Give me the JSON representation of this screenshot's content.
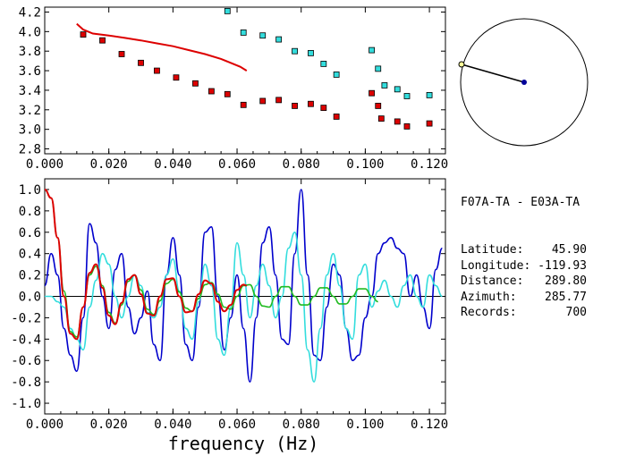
{
  "info": {
    "title": "F07A-TA - E03A-TA",
    "rows": [
      {
        "label": "Latitude:",
        "value": "45.90"
      },
      {
        "label": "Longitude:",
        "value": "-119.93"
      },
      {
        "label": "Distance:",
        "value": "289.80"
      },
      {
        "label": "Azimuth:",
        "value": "285.77"
      },
      {
        "label": "Records:",
        "value": "700"
      }
    ]
  },
  "colors": {
    "red": "#dd0000",
    "cyan": "#33dddd",
    "blue": "#0000cc",
    "green": "#22bb22",
    "zero_line": "#000000"
  },
  "chart_data": [
    {
      "type": "scatter",
      "title": "",
      "xlabel": "",
      "ylabel": "",
      "xlim": [
        0.0,
        0.125
      ],
      "ylim": [
        2.75,
        4.25
      ],
      "x_ticks": [
        "0.000",
        "0.020",
        "0.040",
        "0.060",
        "0.080",
        "0.100",
        "0.120"
      ],
      "y_ticks": [
        "2.8",
        "3.0",
        "3.2",
        "3.4",
        "3.6",
        "3.8",
        "4.0",
        "4.2"
      ],
      "grid": false,
      "series": [
        {
          "kind": "points",
          "color": "red",
          "x": [
            0.012,
            0.018,
            0.024,
            0.03,
            0.035,
            0.041,
            0.047,
            0.052,
            0.057,
            0.062,
            0.068,
            0.073,
            0.078,
            0.083,
            0.087,
            0.091,
            0.102,
            0.104,
            0.105,
            0.11,
            0.113,
            0.12
          ],
          "y": [
            3.97,
            3.91,
            3.77,
            3.68,
            3.6,
            3.53,
            3.47,
            3.39,
            3.36,
            3.25,
            3.29,
            3.3,
            3.24,
            3.26,
            3.22,
            3.13,
            3.37,
            3.24,
            3.11,
            3.08,
            3.03,
            3.06
          ]
        },
        {
          "kind": "points",
          "color": "cyan",
          "x": [
            0.057,
            0.062,
            0.068,
            0.073,
            0.078,
            0.083,
            0.087,
            0.091,
            0.102,
            0.104,
            0.106,
            0.11,
            0.113,
            0.12
          ],
          "y": [
            4.21,
            3.99,
            3.96,
            3.92,
            3.8,
            3.78,
            3.67,
            3.56,
            3.81,
            3.62,
            3.45,
            3.41,
            3.34,
            3.35
          ]
        },
        {
          "kind": "line",
          "color": "red",
          "x": [
            0.01,
            0.012,
            0.015,
            0.02,
            0.025,
            0.03,
            0.035,
            0.04,
            0.045,
            0.05,
            0.055,
            0.058,
            0.061,
            0.063
          ],
          "y": [
            4.08,
            4.02,
            3.98,
            3.96,
            3.935,
            3.91,
            3.88,
            3.85,
            3.81,
            3.77,
            3.72,
            3.68,
            3.64,
            3.6
          ]
        }
      ]
    },
    {
      "type": "line",
      "title": "",
      "xlabel": "frequency (Hz)",
      "ylabel": "",
      "xlim": [
        0.0,
        0.125
      ],
      "ylim": [
        -1.1,
        1.1
      ],
      "x_ticks": [
        "0.000",
        "0.020",
        "0.040",
        "0.060",
        "0.080",
        "0.100",
        "0.120"
      ],
      "y_ticks": [
        "1.0",
        "0.8",
        "0.6",
        "0.4",
        "0.2",
        "0.0",
        "-0.2",
        "-0.4",
        "-0.6",
        "-0.8",
        "-1.0"
      ],
      "grid": false,
      "series": [
        {
          "color": "blue",
          "x": [
            0.0,
            0.002,
            0.004,
            0.006,
            0.008,
            0.01,
            0.012,
            0.014,
            0.016,
            0.018,
            0.02,
            0.022,
            0.024,
            0.026,
            0.028,
            0.03,
            0.032,
            0.034,
            0.036,
            0.038,
            0.04,
            0.042,
            0.044,
            0.046,
            0.048,
            0.05,
            0.052,
            0.054,
            0.056,
            0.058,
            0.06,
            0.062,
            0.064,
            0.066,
            0.068,
            0.07,
            0.072,
            0.074,
            0.076,
            0.078,
            0.08,
            0.082,
            0.084,
            0.086,
            0.088,
            0.09,
            0.092,
            0.094,
            0.096,
            0.098,
            0.1,
            0.102,
            0.104,
            0.106,
            0.108,
            0.11,
            0.112,
            0.114,
            0.116,
            0.118,
            0.12,
            0.122,
            0.124
          ],
          "y": [
            0.1,
            0.4,
            0.2,
            -0.3,
            -0.55,
            -0.7,
            -0.2,
            0.68,
            0.5,
            0.0,
            -0.3,
            0.25,
            0.4,
            -0.1,
            -0.35,
            -0.2,
            0.05,
            -0.45,
            -0.6,
            0.2,
            0.55,
            0.2,
            -0.45,
            -0.6,
            -0.1,
            0.6,
            0.65,
            0.0,
            -0.5,
            -0.2,
            0.2,
            -0.3,
            -0.8,
            -0.2,
            0.5,
            0.65,
            0.2,
            -0.4,
            -0.45,
            0.4,
            1.0,
            0.2,
            -0.55,
            -0.6,
            -0.1,
            0.3,
            0.2,
            -0.3,
            -0.6,
            -0.55,
            -0.2,
            0.0,
            0.4,
            0.5,
            0.55,
            0.45,
            0.4,
            0.0,
            0.2,
            -0.1,
            -0.3,
            0.25,
            0.45
          ]
        },
        {
          "color": "cyan",
          "x": [
            0.0,
            0.002,
            0.004,
            0.006,
            0.008,
            0.01,
            0.012,
            0.014,
            0.016,
            0.018,
            0.02,
            0.022,
            0.024,
            0.026,
            0.028,
            0.03,
            0.032,
            0.034,
            0.036,
            0.038,
            0.04,
            0.042,
            0.044,
            0.046,
            0.048,
            0.05,
            0.052,
            0.054,
            0.056,
            0.058,
            0.06,
            0.062,
            0.064,
            0.066,
            0.068,
            0.07,
            0.072,
            0.074,
            0.076,
            0.078,
            0.08,
            0.082,
            0.084,
            0.086,
            0.088,
            0.09,
            0.092,
            0.094,
            0.096,
            0.098,
            0.1,
            0.102,
            0.104,
            0.106,
            0.108,
            0.11,
            0.112,
            0.114,
            0.116,
            0.118,
            0.12,
            0.122,
            0.124
          ],
          "y": [
            0.0,
            0.0,
            -0.05,
            -0.1,
            -0.3,
            -0.4,
            -0.5,
            -0.1,
            0.15,
            0.4,
            0.3,
            0.0,
            -0.2,
            0.0,
            0.2,
            0.1,
            -0.15,
            -0.2,
            -0.1,
            0.2,
            0.35,
            0.05,
            -0.3,
            -0.4,
            -0.05,
            0.3,
            0.1,
            -0.4,
            -0.55,
            -0.1,
            0.5,
            0.2,
            -0.2,
            0.1,
            0.3,
            0.1,
            -0.2,
            0.0,
            0.45,
            0.6,
            0.2,
            -0.5,
            -0.8,
            -0.3,
            0.2,
            0.4,
            0.1,
            -0.3,
            -0.4,
            0.2,
            0.3,
            -0.1,
            0.05,
            0.15,
            0.0,
            -0.1,
            0.1,
            0.2,
            0.0,
            -0.1,
            0.2,
            0.1,
            0.0
          ]
        },
        {
          "color": "green",
          "x": [
            0.0,
            0.002,
            0.004,
            0.006,
            0.008,
            0.01,
            0.012,
            0.014,
            0.016,
            0.018,
            0.02,
            0.022,
            0.024,
            0.026,
            0.028,
            0.03,
            0.032,
            0.034,
            0.036,
            0.038,
            0.04,
            0.042,
            0.044,
            0.046,
            0.048,
            0.05,
            0.052,
            0.054,
            0.056,
            0.058,
            0.06,
            0.062,
            0.064,
            0.066,
            0.068,
            0.07,
            0.072,
            0.074,
            0.076,
            0.078,
            0.08,
            0.082,
            0.084,
            0.086,
            0.088,
            0.09,
            0.092,
            0.094,
            0.096,
            0.098,
            0.1,
            0.102,
            0.104
          ],
          "y": [
            1.0,
            0.92,
            0.55,
            0.05,
            -0.33,
            -0.38,
            -0.1,
            0.2,
            0.28,
            0.1,
            -0.15,
            -0.25,
            -0.08,
            0.14,
            0.2,
            0.06,
            -0.12,
            -0.17,
            -0.04,
            0.12,
            0.16,
            0.04,
            -0.11,
            -0.14,
            -0.02,
            0.11,
            0.13,
            0.02,
            -0.1,
            -0.12,
            0.0,
            0.1,
            0.11,
            0.0,
            -0.09,
            -0.1,
            0.0,
            0.09,
            0.09,
            0.0,
            -0.08,
            -0.08,
            0.0,
            0.08,
            0.08,
            0.0,
            -0.07,
            -0.07,
            0.0,
            0.07,
            0.07,
            0.0,
            -0.05
          ]
        },
        {
          "color": "red",
          "x": [
            0.0,
            0.002,
            0.004,
            0.006,
            0.008,
            0.01,
            0.012,
            0.014,
            0.016,
            0.018,
            0.02,
            0.022,
            0.024,
            0.026,
            0.028,
            0.03,
            0.032,
            0.034,
            0.036,
            0.038,
            0.04,
            0.042,
            0.044,
            0.046,
            0.048,
            0.05,
            0.052,
            0.054,
            0.056,
            0.058,
            0.06,
            0.062,
            0.063
          ],
          "y": [
            1.0,
            0.92,
            0.55,
            0.0,
            -0.35,
            -0.4,
            -0.1,
            0.22,
            0.3,
            0.08,
            -0.18,
            -0.26,
            -0.06,
            0.16,
            0.2,
            0.02,
            -0.16,
            -0.18,
            0.0,
            0.16,
            0.17,
            0.0,
            -0.15,
            -0.14,
            0.02,
            0.15,
            0.12,
            -0.05,
            -0.14,
            -0.08,
            0.06,
            0.11,
            0.1
          ]
        }
      ]
    }
  ]
}
